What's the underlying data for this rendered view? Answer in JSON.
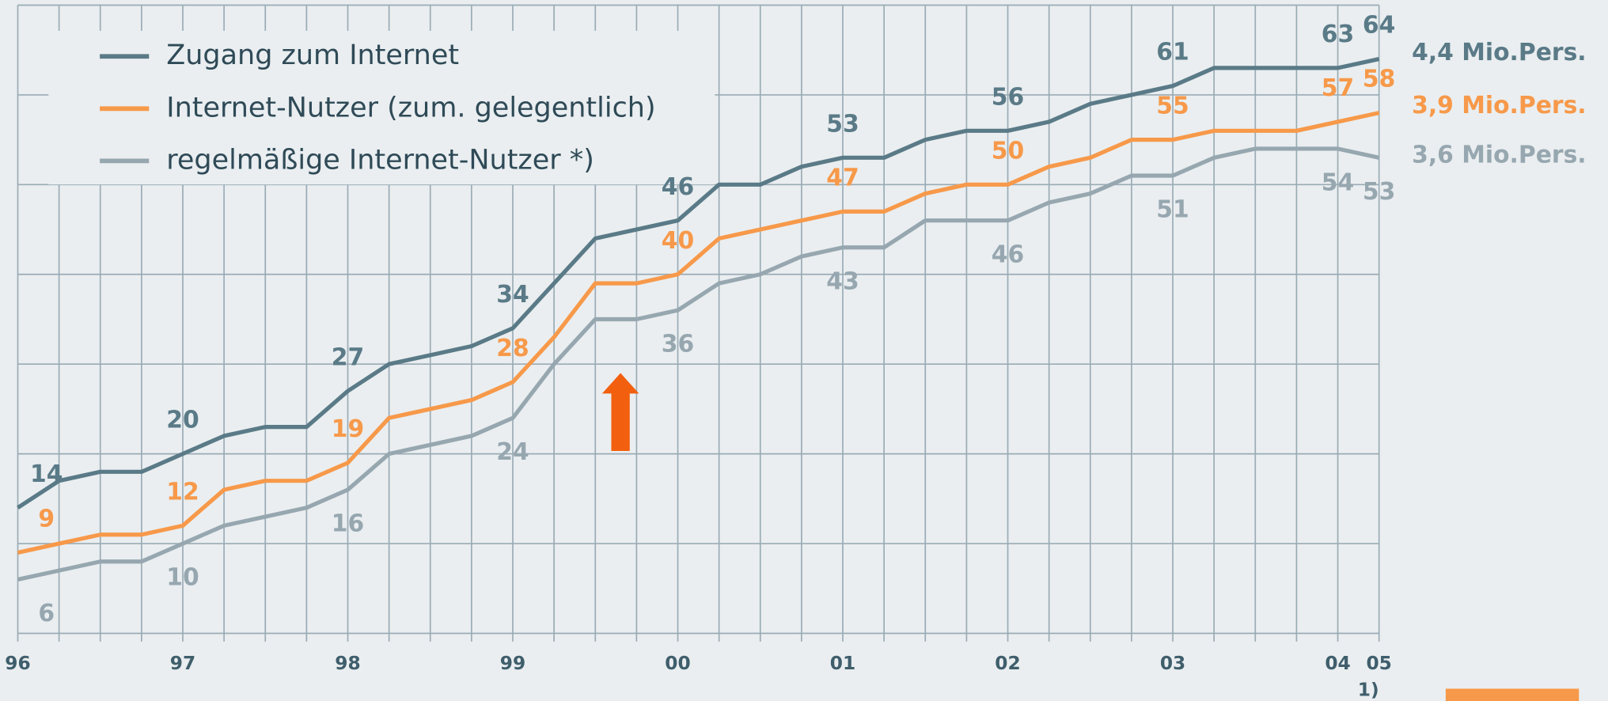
{
  "chart_data": {
    "type": "line",
    "categories": [
      "96",
      null,
      null,
      null,
      "97",
      null,
      null,
      null,
      "98",
      null,
      null,
      null,
      "99",
      null,
      null,
      null,
      "00",
      null,
      null,
      null,
      "01",
      null,
      null,
      null,
      "02",
      null,
      null,
      null,
      "03",
      null,
      null,
      null,
      "04",
      "05"
    ],
    "note": "1)",
    "ylim": [
      0,
      70
    ],
    "yticks": [
      0,
      10,
      20,
      30,
      40,
      50,
      60,
      70
    ],
    "grid": true,
    "series": [
      {
        "name": "Zugang zum Internet",
        "color": "#5a7a87",
        "end_label": "4,4 Mio.Pers.",
        "values": [
          14,
          17,
          18,
          18,
          20,
          22,
          23,
          23,
          27,
          30,
          31,
          32,
          34,
          39,
          44,
          45,
          46,
          50,
          50,
          52,
          53,
          53,
          55,
          56,
          56,
          57,
          59,
          60,
          61,
          63,
          63,
          63,
          63,
          64
        ]
      },
      {
        "name": "Internet-Nutzer (zum. gelegentlich)",
        "color": "#f7994a",
        "end_label": "3,9 Mio.Pers.",
        "values": [
          9,
          10,
          11,
          11,
          12,
          16,
          17,
          17,
          19,
          24,
          25,
          26,
          28,
          33,
          39,
          39,
          40,
          44,
          45,
          46,
          47,
          47,
          49,
          50,
          50,
          52,
          53,
          55,
          55,
          56,
          56,
          56,
          57,
          58
        ]
      },
      {
        "name": "regelmäßige Internet-Nutzer *)",
        "color": "#97a7b0",
        "end_label": "3,6 Mio.Pers.",
        "values": [
          6,
          7,
          8,
          8,
          10,
          12,
          13,
          14,
          16,
          20,
          21,
          22,
          24,
          30,
          35,
          35,
          36,
          39,
          40,
          42,
          43,
          43,
          46,
          46,
          46,
          48,
          49,
          51,
          51,
          53,
          54,
          54,
          54,
          53
        ]
      }
    ]
  }
}
